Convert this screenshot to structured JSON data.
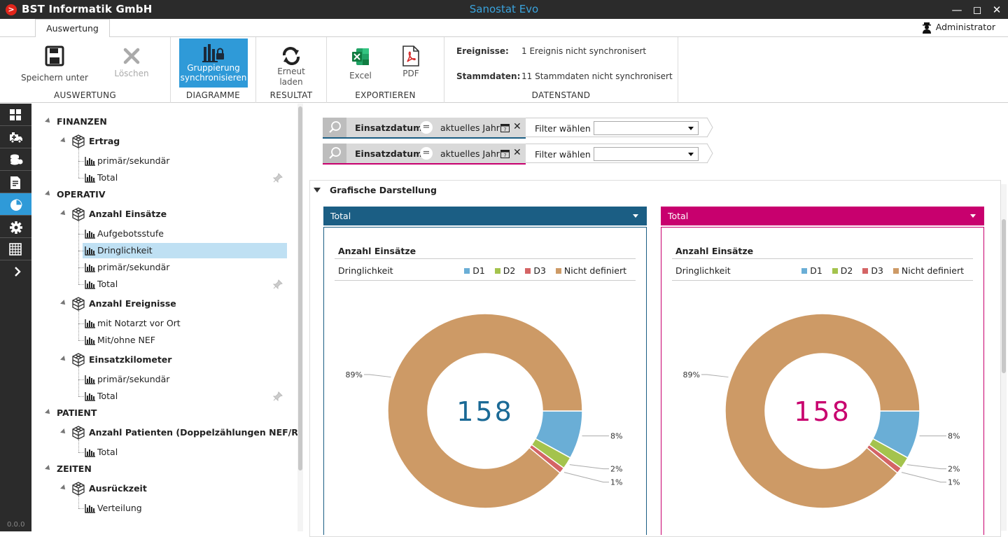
{
  "window": {
    "company": "BST Informatik GmbH",
    "app_title": "Sanostat Evo"
  },
  "ribbon_tab": "Auswertung",
  "user": "Administrator",
  "ribbon": {
    "save_label": "Speichern unter",
    "delete_label": "Löschen",
    "group_auswertung": "AUSWERTUNG",
    "sync_label_1": "Gruppierung",
    "sync_label_2": "synchronisieren",
    "group_diagramme": "DIAGRAMME",
    "reload_label_1": "Erneut",
    "reload_label_2": "laden",
    "group_resultat": "RESULTAT",
    "excel_label": "Excel",
    "pdf_label": "PDF",
    "group_exportieren": "EXPORTIEREN",
    "events_label": "Ereignisse:",
    "events_value": "1 Ereignis nicht synchronisert",
    "master_label": "Stammdaten:",
    "master_value": "11 Stammdaten nicht synchronisert",
    "group_datenstand": "DATENSTAND"
  },
  "version": "0.0.0",
  "tree": {
    "finanzen": "FINANZEN",
    "ertrag": "Ertrag",
    "ertrag_1": "primär/sekundär",
    "ertrag_2": "Total",
    "operativ": "OPERATIV",
    "einsaetze": "Anzahl Einsätze",
    "einsaetze_1": "Aufgebotsstufe",
    "einsaetze_2": "Dringlichkeit",
    "einsaetze_3": "primär/sekundär",
    "einsaetze_4": "Total",
    "ereignisse": "Anzahl Ereignisse",
    "ereignisse_1": "mit Notarzt vor Ort",
    "ereignisse_2": "Mit/ohne NEF",
    "km": "Einsatzkilometer",
    "km_1": "primär/sekundär",
    "km_2": "Total",
    "patient": "PATIENT",
    "patienten": "Anzahl Patienten (Doppelzählungen NEF/RTW)",
    "patienten_1": "Total",
    "zeiten": "ZEITEN",
    "ausrueck": "Ausrückzeit",
    "ausrueck_1": "Verteilung"
  },
  "filters": [
    {
      "name": "Einsatzdatum",
      "op": "=",
      "value": "aktuelles Jahr",
      "choose": "Filter wählen",
      "color": "#1b5e84"
    },
    {
      "name": "Einsatzdatum",
      "op": "=",
      "value": "aktuelles Jahr",
      "choose": "Filter wählen",
      "color": "#c8006e"
    }
  ],
  "panel_title": "Grafische Darstellung",
  "charts": [
    {
      "header": "Total",
      "title": "Anzahl Einsätze",
      "subtitle": "Dringlichkeit",
      "total": "158",
      "accent": "#1b5e84",
      "center_color": "#1b6a96"
    },
    {
      "header": "Total",
      "title": "Anzahl Einsätze",
      "subtitle": "Dringlichkeit",
      "total": "158",
      "accent": "#c8006e",
      "center_color": "#c8006e"
    }
  ],
  "legend": [
    {
      "label": "D1",
      "color": "#6aaed6"
    },
    {
      "label": "D2",
      "color": "#a4c34d"
    },
    {
      "label": "D3",
      "color": "#d46465"
    },
    {
      "label": "Nicht definiert",
      "color": "#cd9a66"
    }
  ],
  "chart_data": [
    {
      "type": "pie",
      "title": "Anzahl Einsätze",
      "subtitle": "Dringlichkeit",
      "categories": [
        "D1",
        "D2",
        "D3",
        "Nicht definiert"
      ],
      "values": [
        8,
        2,
        1,
        89
      ],
      "unit": "%",
      "total": 158
    },
    {
      "type": "pie",
      "title": "Anzahl Einsätze",
      "subtitle": "Dringlichkeit",
      "categories": [
        "D1",
        "D2",
        "D3",
        "Nicht definiert"
      ],
      "values": [
        8,
        2,
        1,
        89
      ],
      "unit": "%",
      "total": 158
    }
  ]
}
